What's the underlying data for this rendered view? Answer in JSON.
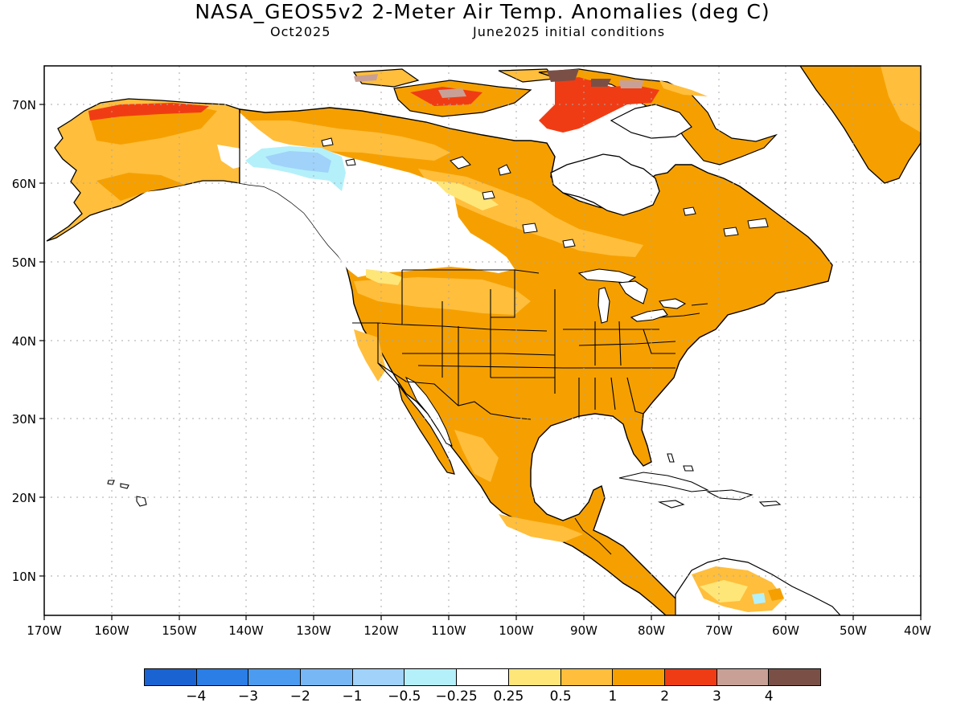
{
  "title": "NASA_GEOS5v2 2-Meter Air Temp. Anomalies (deg C)",
  "subtitle_left": "Oct2025",
  "subtitle_right": "June2025 initial conditions",
  "lat_labels": [
    "70N",
    "60N",
    "50N",
    "40N",
    "30N",
    "20N",
    "10N"
  ],
  "lon_labels": [
    "170W",
    "160W",
    "150W",
    "140W",
    "130W",
    "120W",
    "110W",
    "100W",
    "90W",
    "80W",
    "70W",
    "60W",
    "50W",
    "40W"
  ],
  "legend": {
    "colors": [
      "#1964d2",
      "#2a7ee6",
      "#4b9cf0",
      "#78b7f6",
      "#a0d2fa",
      "#b4f0fa",
      "#ffffff",
      "#ffe678",
      "#ffbe3c",
      "#f5a000",
      "#f03c14",
      "#c8a096",
      "#7a5046"
    ],
    "labels": [
      "−4",
      "−3",
      "−2",
      "−1",
      "−0.5",
      "−0.25",
      "0.25",
      "0.5",
      "1",
      "2",
      "3",
      "4"
    ]
  }
}
